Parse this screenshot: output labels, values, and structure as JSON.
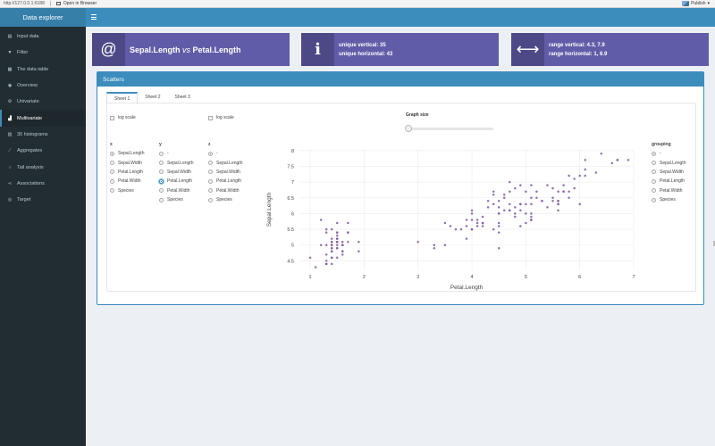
{
  "browser": {
    "url": "http://127.0.0.1:6188",
    "open_label": "Open in Browser",
    "publish_label": "Publish"
  },
  "app": {
    "title": "Data explorer"
  },
  "sidebar": {
    "items": [
      {
        "label": "Input data",
        "icon": "database-icon",
        "glyph": "▤"
      },
      {
        "label": "Filter",
        "icon": "filter-icon",
        "glyph": "▼"
      },
      {
        "label": "The data table",
        "icon": "table-icon",
        "glyph": "▦"
      },
      {
        "label": "Overview",
        "icon": "binoculars-icon",
        "glyph": "◉"
      },
      {
        "label": "Univariate",
        "icon": "cogs-icon",
        "glyph": "⚙"
      },
      {
        "label": "Multivariate",
        "icon": "area-chart-icon",
        "glyph": "▟",
        "active": true
      },
      {
        "label": "30 histograms",
        "icon": "bar-chart-icon",
        "glyph": "▥"
      },
      {
        "label": "Aggregates",
        "icon": "line-chart-icon",
        "glyph": "⟋"
      },
      {
        "label": "Tail analysis",
        "icon": "search-icon",
        "glyph": "○"
      },
      {
        "label": "Associations",
        "icon": "share-icon",
        "glyph": "⋖"
      },
      {
        "label": "Target",
        "icon": "bullseye-icon",
        "glyph": "◎"
      }
    ]
  },
  "infobox1": {
    "icon": "at-icon",
    "glyph": "@",
    "var1": "Sepal.Length",
    "vs": "vs",
    "var2": "Petal.Length"
  },
  "infobox2": {
    "icon": "info-icon",
    "glyph": "i",
    "line1": "unique vertical: 35",
    "line2": "unique horizontal: 43"
  },
  "infobox3": {
    "icon": "arrows-h-icon",
    "glyph": "⟷",
    "line1": "range vertical: 4.3, 7.9",
    "line2": "range horizontal: 1, 6.9"
  },
  "panel": {
    "title": "Scatters",
    "tabs": [
      "Sheet 1",
      "Sheet 2",
      "Sheet 3"
    ],
    "log_scale_label": "log scale",
    "graph_size_label": "Graph size",
    "x_group": {
      "title": "x",
      "options": [
        "Sepal.Length",
        "Sepal.Width",
        "Petal.Length",
        "Petal.Width",
        "Species"
      ]
    },
    "y_group": {
      "title": "y",
      "options": [
        "-",
        "Sepal.Length",
        "Sepal.Width",
        "Petal.Length",
        "Petal.Width",
        "Species"
      ]
    },
    "z_group": {
      "title": "z",
      "options": [
        "-",
        "Sepal.Length",
        "Sepal.Width",
        "Petal.Length",
        "Petal.Width",
        "Species"
      ]
    },
    "grouping_group": {
      "title": "grouping",
      "options": [
        "-",
        "Sepal.Length",
        "Sepal.Width",
        "Petal.Length",
        "Petal.Width",
        "Species"
      ]
    }
  },
  "chart_data": {
    "type": "scatter",
    "xlabel": "Petal.Length",
    "ylabel": "Sepal.Length",
    "xlim": [
      0.8,
      7.0
    ],
    "ylim": [
      4.2,
      8.05
    ],
    "xticks": [
      1,
      2,
      3,
      4,
      5,
      6,
      7
    ],
    "yticks": [
      4.5,
      5,
      5.5,
      6,
      6.5,
      7,
      7.5,
      8
    ],
    "grid": true,
    "point_color": "#7b5a9e",
    "series": [
      {
        "x": [
          1.4,
          1.4,
          1.3,
          1.5,
          1.4,
          1.7,
          1.4,
          1.5,
          1.4,
          1.5,
          1.5,
          1.6,
          1.4,
          1.1,
          1.2,
          1.5,
          1.3,
          1.4,
          1.7,
          1.5,
          1.7,
          1.5,
          1.0,
          1.7,
          1.9,
          1.6,
          1.6,
          1.5,
          1.4,
          1.6,
          1.6,
          1.5,
          1.5,
          1.4,
          1.5,
          1.2,
          1.3,
          1.4,
          1.3,
          1.5,
          1.3,
          1.3,
          1.3,
          1.6,
          1.9,
          1.4,
          1.6,
          1.4,
          1.5,
          1.4,
          4.7,
          4.5,
          4.9,
          4.0,
          4.6,
          4.5,
          4.7,
          3.3,
          4.6,
          3.9,
          3.5,
          4.2,
          4.0,
          4.7,
          3.6,
          4.4,
          4.5,
          4.1,
          4.5,
          3.9,
          4.8,
          4.0,
          4.9,
          4.7,
          4.3,
          4.4,
          4.8,
          5.0,
          4.5,
          3.5,
          3.8,
          3.7,
          3.9,
          5.1,
          4.5,
          4.5,
          4.7,
          4.4,
          4.1,
          4.0,
          4.4,
          4.6,
          4.0,
          3.3,
          4.2,
          4.2,
          4.2,
          4.3,
          3.0,
          4.1,
          6.0,
          5.1,
          5.9,
          5.6,
          5.8,
          6.6,
          4.5,
          6.3,
          5.8,
          6.1,
          5.1,
          5.3,
          5.5,
          5.0,
          5.1,
          5.3,
          5.5,
          6.7,
          6.9,
          5.0,
          5.7,
          4.9,
          6.7,
          4.9,
          5.7,
          6.0,
          4.8,
          4.9,
          5.6,
          5.8,
          6.1,
          6.4,
          5.6,
          5.1,
          5.6,
          6.1,
          5.6,
          5.5,
          4.8,
          5.4,
          5.6,
          5.1,
          5.1,
          5.9,
          5.7,
          5.2,
          5.0,
          5.2,
          5.4,
          5.1
        ],
        "y": [
          5.1,
          4.9,
          4.7,
          4.6,
          5.0,
          5.4,
          4.6,
          5.0,
          4.4,
          4.9,
          5.4,
          4.8,
          4.8,
          4.3,
          5.8,
          5.7,
          5.4,
          5.1,
          5.7,
          5.1,
          5.4,
          5.1,
          4.6,
          5.1,
          4.8,
          5.0,
          5.0,
          5.2,
          5.2,
          4.7,
          4.8,
          5.4,
          5.2,
          5.5,
          4.9,
          5.0,
          5.5,
          4.9,
          4.4,
          5.1,
          5.0,
          4.5,
          4.4,
          5.0,
          5.1,
          4.8,
          5.1,
          4.6,
          5.3,
          5.0,
          7.0,
          6.4,
          6.9,
          5.5,
          6.5,
          5.7,
          6.3,
          4.9,
          6.6,
          5.2,
          5.0,
          5.9,
          6.0,
          6.1,
          5.6,
          6.7,
          5.6,
          5.8,
          6.2,
          5.6,
          5.9,
          6.1,
          6.3,
          6.1,
          6.4,
          6.6,
          6.8,
          6.7,
          6.0,
          5.7,
          5.5,
          5.5,
          5.8,
          6.0,
          5.4,
          6.0,
          6.7,
          6.3,
          5.6,
          5.5,
          5.5,
          6.1,
          5.8,
          5.0,
          5.6,
          5.7,
          5.7,
          6.2,
          5.1,
          5.7,
          6.3,
          5.8,
          7.1,
          6.3,
          6.5,
          7.6,
          4.9,
          7.3,
          6.7,
          7.2,
          6.5,
          6.4,
          6.8,
          5.7,
          5.8,
          6.4,
          6.5,
          7.7,
          7.7,
          6.0,
          6.9,
          5.6,
          7.7,
          6.3,
          6.7,
          7.2,
          6.2,
          6.1,
          6.4,
          7.2,
          7.4,
          7.9,
          6.4,
          6.3,
          6.1,
          7.7,
          6.3,
          6.4,
          6.0,
          6.9,
          6.7,
          6.9,
          5.8,
          6.8,
          6.7,
          6.7,
          6.3,
          6.5,
          6.2,
          5.9
        ]
      }
    ]
  }
}
